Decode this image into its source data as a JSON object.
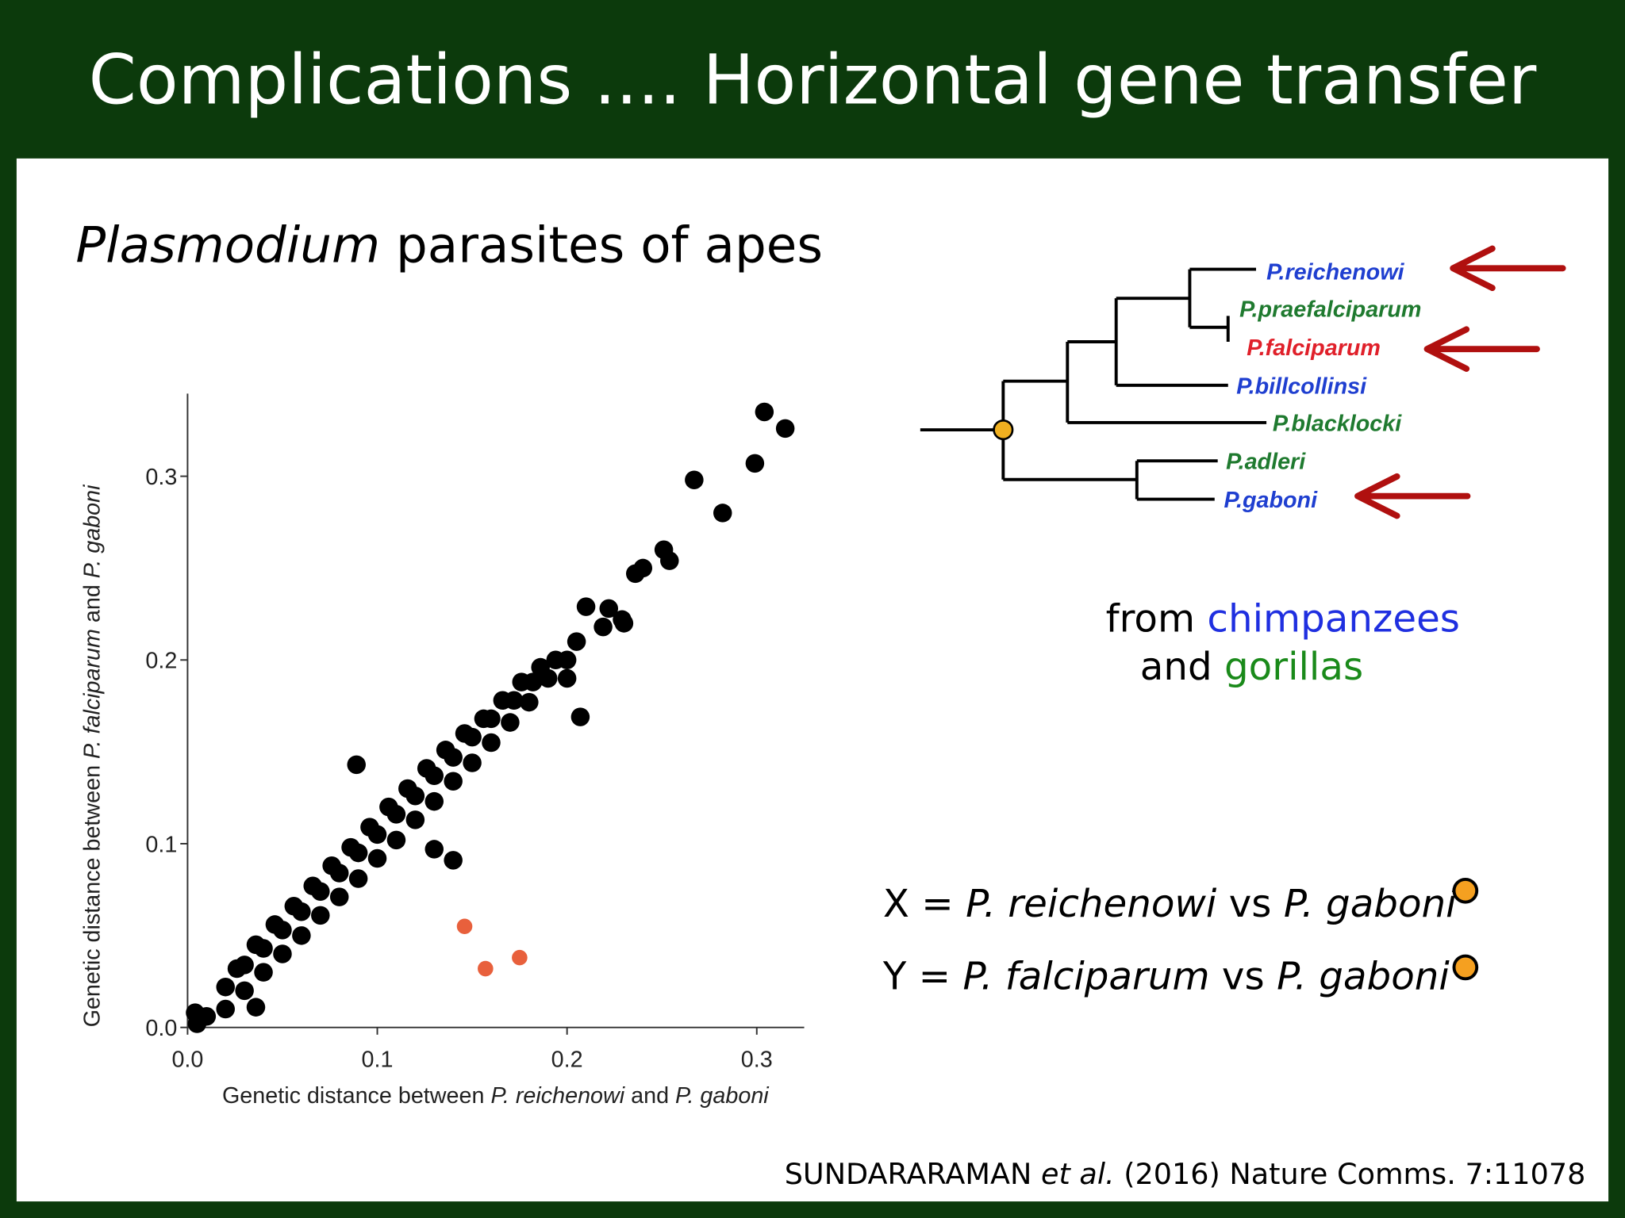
{
  "title": "Complications .... Horizontal gene transfer",
  "subtitle": [
    "Plasmodium",
    " parasites of apes"
  ],
  "chart_data": {
    "type": "scatter",
    "xlabel": [
      "Genetic distance between ",
      "P. reichenowi",
      " and ",
      "P. gaboni"
    ],
    "ylabel": [
      "Genetic distance between ",
      "P. falciparum",
      " and ",
      "P. gaboni"
    ],
    "xlim": [
      0,
      0.325
    ],
    "ylim": [
      0,
      0.345
    ],
    "xticks": [
      {
        "value": 0,
        "label": "0.0"
      },
      0.1,
      0.2,
      0.3
    ],
    "yticks": [
      {
        "value": 0,
        "label": "0.0"
      },
      0.1,
      0.2,
      0.3
    ],
    "series": [
      {
        "color": "#000000",
        "x": [
          0.005,
          0.004,
          0.01,
          0.02,
          0.02,
          0.026,
          0.03,
          0.03,
          0.036,
          0.04,
          0.04,
          0.046,
          0.05,
          0.05,
          0.056,
          0.06,
          0.06,
          0.066,
          0.07,
          0.07,
          0.076,
          0.08,
          0.08,
          0.086,
          0.09,
          0.09,
          0.096,
          0.1,
          0.1,
          0.106,
          0.11,
          0.11,
          0.116,
          0.12,
          0.12,
          0.126,
          0.13,
          0.13,
          0.136,
          0.14,
          0.14,
          0.146,
          0.15,
          0.15,
          0.156,
          0.16,
          0.16,
          0.166,
          0.17,
          0.172,
          0.176,
          0.18,
          0.182,
          0.186,
          0.19,
          0.194,
          0.2,
          0.205,
          0.304,
          0.315,
          0.299,
          0.267,
          0.282,
          0.251,
          0.254,
          0.236,
          0.24,
          0.21,
          0.222,
          0.229,
          0.219,
          0.23,
          0.207,
          0.2,
          0.089,
          0.036,
          0.13,
          0.14
        ],
        "y": [
          0.002,
          0.008,
          0.006,
          0.01,
          0.022,
          0.032,
          0.02,
          0.034,
          0.045,
          0.03,
          0.043,
          0.056,
          0.04,
          0.053,
          0.066,
          0.05,
          0.063,
          0.077,
          0.061,
          0.074,
          0.088,
          0.071,
          0.084,
          0.098,
          0.081,
          0.095,
          0.109,
          0.092,
          0.105,
          0.12,
          0.102,
          0.116,
          0.13,
          0.113,
          0.126,
          0.141,
          0.123,
          0.137,
          0.151,
          0.134,
          0.147,
          0.16,
          0.144,
          0.158,
          0.168,
          0.155,
          0.168,
          0.178,
          0.166,
          0.178,
          0.188,
          0.177,
          0.188,
          0.196,
          0.19,
          0.2,
          0.2,
          0.21,
          0.335,
          0.326,
          0.307,
          0.298,
          0.28,
          0.26,
          0.254,
          0.247,
          0.25,
          0.229,
          0.228,
          0.222,
          0.218,
          0.22,
          0.169,
          0.19,
          0.143,
          0.011,
          0.097,
          0.091
        ]
      },
      {
        "color": "#e8603c",
        "x": [
          0.146,
          0.157,
          0.175
        ],
        "y": [
          0.055,
          0.032,
          0.038
        ]
      }
    ]
  },
  "tree": {
    "leaves": [
      {
        "label": "P.reichenowi",
        "color": "#1f3fd0"
      },
      {
        "label": "P.praefalciparum",
        "color": "#1f7a2f"
      },
      {
        "label": "P.falciparum",
        "color": "#e0202a"
      },
      {
        "label": "P.billcollinsi",
        "color": "#1f3fd0"
      },
      {
        "label": "P.blacklocki",
        "color": "#1f7a2f"
      },
      {
        "label": "P.adleri",
        "color": "#1f7a2f"
      },
      {
        "label": "P.gaboni",
        "color": "#1f3fd0"
      }
    ]
  },
  "hosts": {
    "line1": [
      "from ",
      "chimpanzees"
    ],
    "line2": [
      "and ",
      "gorillas"
    ]
  },
  "axes_note": {
    "x": [
      "X = ",
      "P. reichenowi",
      " vs ",
      "P. gaboni"
    ],
    "y": [
      "Y = ",
      "P. falciparum",
      " vs ",
      "P. gaboni"
    ]
  },
  "citation": [
    "SUNDARARAMAN ",
    "et al.",
    " (2016) Nature Comms. 7:11078"
  ]
}
